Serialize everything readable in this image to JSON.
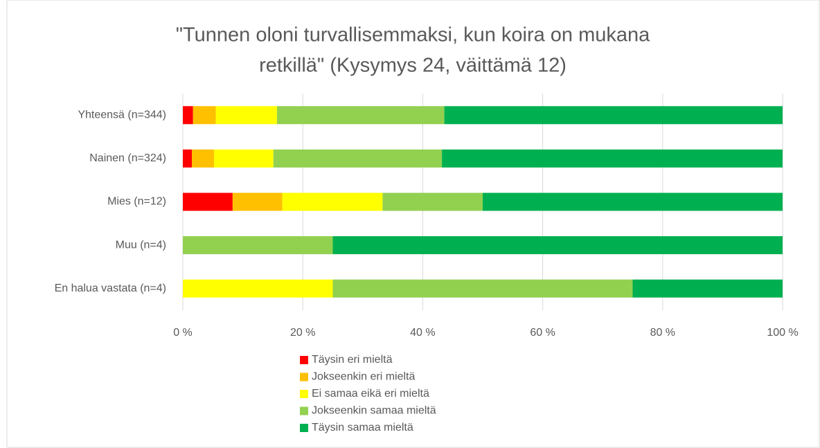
{
  "chart_data": {
    "type": "stacked_bar_horizontal",
    "title": [
      "\"Tunnen oloni turvallisemmaksi, kun koira on mukana",
      "retkillä\" (Kysymys 24, väittämä 12)"
    ],
    "categories": [
      "Yhteensä (n=344)",
      "Nainen (n=324)",
      "Mies (n=12)",
      "Muu (n=4)",
      "En halua vastata (n=4)"
    ],
    "series": [
      {
        "name": "Täysin eri mieltä",
        "color": "#ff0000",
        "values": [
          1.7,
          1.5,
          8.3,
          0,
          0
        ]
      },
      {
        "name": "Jokseenkin eri mieltä",
        "color": "#ffc000",
        "values": [
          3.8,
          3.7,
          8.3,
          0,
          0
        ]
      },
      {
        "name": "Ei samaa eikä eri mieltä",
        "color": "#ffff00",
        "values": [
          10.2,
          9.9,
          16.7,
          0,
          25
        ]
      },
      {
        "name": "Jokseenkin samaa mieltä",
        "color": "#92d050",
        "values": [
          27.9,
          28.1,
          16.7,
          25,
          50
        ]
      },
      {
        "name": "Täysin samaa mieltä",
        "color": "#00b050",
        "values": [
          56.4,
          56.8,
          50,
          75,
          25
        ]
      }
    ],
    "xlim": [
      0,
      100
    ],
    "xticks": [
      {
        "value": 0,
        "label": "0 %"
      },
      {
        "value": 20,
        "label": "20 %"
      },
      {
        "value": 40,
        "label": "40 %"
      },
      {
        "value": 60,
        "label": "60 %"
      },
      {
        "value": 80,
        "label": "80 %"
      },
      {
        "value": 100,
        "label": "100 %"
      }
    ],
    "grid": true,
    "legend": "bottom"
  }
}
